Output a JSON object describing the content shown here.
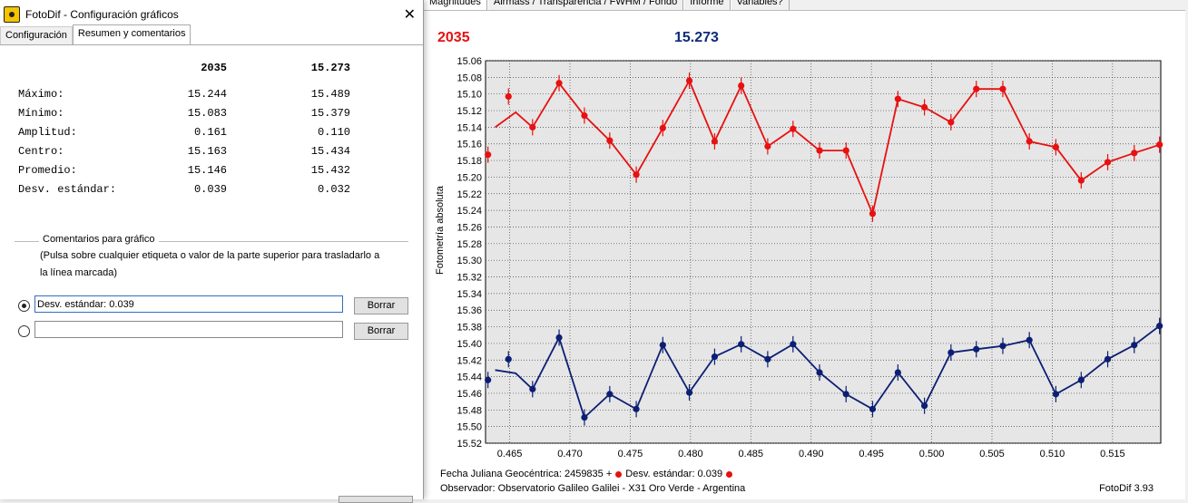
{
  "dialog": {
    "title": "FotoDif - Configuración gráficos",
    "close": "✕",
    "tabs": [
      "Configuración",
      "Resumen y comentarios"
    ],
    "stats": {
      "headers": [
        "2035",
        "15.273"
      ],
      "rows": [
        {
          "name": "Máximo:",
          "v1": "15.244",
          "v2": "15.489"
        },
        {
          "name": "Mínimo:",
          "v1": "15.083",
          "v2": "15.379"
        },
        {
          "name": "Amplitud:",
          "v1": "0.161",
          "v2": "0.110"
        },
        {
          "name": "Centro:",
          "v1": "15.163",
          "v2": "15.434"
        },
        {
          "name": "Promedio:",
          "v1": "15.146",
          "v2": "15.432"
        },
        {
          "name": "Desv. estándar:",
          "v1": "0.039",
          "v2": "0.032"
        }
      ]
    },
    "comments_title": "Comentarios para gráfico",
    "comments_help": "(Pulsa sobre cualquier etiqueta o valor de la parte superior para trasladarlo a la línea marcada)",
    "comment_line1": "Desv. estándar: 0.039",
    "comment_line2": "",
    "clear_label": "Borrar"
  },
  "main": {
    "tabs": [
      "Magnitudes",
      "Airmass / Transparencia / FWHM / Fondo",
      "Informe",
      "Variables?"
    ],
    "label_red": "2035",
    "label_blue": "15.273",
    "footer_line1_prefix": "Fecha Juliana Geocéntrica: 2459835 +",
    "footer_line1_stat": "Desv. estándar: 0.039",
    "footer_line2": "Observador: Observatorio Galileo Galilei - X31 Oro Verde - Argentina",
    "footer_version": "FotoDif 3.93"
  },
  "colors": {
    "red": "#e81010",
    "blue": "#0c1f73"
  },
  "chart_data": {
    "type": "line",
    "ylabel": "Fotometría absoluta",
    "xlabel": "",
    "xlim": [
      0.463,
      0.519
    ],
    "ylim": [
      15.06,
      15.52
    ],
    "y_inverted": true,
    "grid": true,
    "x_ticks": [
      "0.465",
      "0.470",
      "0.475",
      "0.480",
      "0.485",
      "0.490",
      "0.495",
      "0.500",
      "0.505",
      "0.510",
      "0.515"
    ],
    "y_ticks": [
      "15.06",
      "15.08",
      "15.10",
      "15.12",
      "15.14",
      "15.16",
      "15.18",
      "15.20",
      "15.22",
      "15.24",
      "15.26",
      "15.28",
      "15.30",
      "15.32",
      "15.34",
      "15.36",
      "15.38",
      "15.40",
      "15.42",
      "15.44",
      "15.46",
      "15.48",
      "15.50",
      "15.52"
    ],
    "series": [
      {
        "name": "2035",
        "color": "#e81010",
        "x": [
          0.4632,
          0.4649,
          0.4669,
          0.4691,
          0.4712,
          0.4733,
          0.4755,
          0.4777,
          0.4799,
          0.482,
          0.4842,
          0.4864,
          0.4885,
          0.4907,
          0.4929,
          0.4951,
          0.4972,
          0.4994,
          0.5016,
          0.5037,
          0.5059,
          0.5081,
          0.5103,
          0.5124,
          0.5146,
          0.5168,
          0.5189
        ],
        "y": [
          15.173,
          15.103,
          15.14,
          15.087,
          15.126,
          15.156,
          15.197,
          15.141,
          15.084,
          15.157,
          15.09,
          15.163,
          15.142,
          15.168,
          15.168,
          15.244,
          15.106,
          15.116,
          15.134,
          15.094,
          15.094,
          15.157,
          15.164,
          15.204,
          15.182,
          15.171,
          15.161
        ],
        "line_x": [
          0.4638,
          0.4655,
          0.4669,
          0.4691,
          0.4712,
          0.4733,
          0.4755,
          0.4777,
          0.4799,
          0.482,
          0.4842,
          0.4864,
          0.4885,
          0.4907,
          0.4929,
          0.4951,
          0.4972,
          0.4994,
          0.5016,
          0.5037,
          0.5059,
          0.5081,
          0.5103,
          0.5124,
          0.5146,
          0.5168,
          0.5189
        ],
        "line_y": [
          15.14,
          15.122,
          15.14,
          15.087,
          15.126,
          15.156,
          15.197,
          15.141,
          15.084,
          15.157,
          15.09,
          15.163,
          15.142,
          15.168,
          15.168,
          15.244,
          15.106,
          15.116,
          15.134,
          15.094,
          15.094,
          15.157,
          15.164,
          15.204,
          15.182,
          15.171,
          15.161
        ]
      },
      {
        "name": "15.273",
        "color": "#0c1f73",
        "x": [
          0.4632,
          0.4649,
          0.4669,
          0.4691,
          0.4712,
          0.4733,
          0.4755,
          0.4777,
          0.4799,
          0.482,
          0.4842,
          0.4864,
          0.4885,
          0.4907,
          0.4929,
          0.4951,
          0.4972,
          0.4994,
          0.5016,
          0.5037,
          0.5059,
          0.5081,
          0.5103,
          0.5124,
          0.5146,
          0.5168,
          0.5189
        ],
        "y": [
          15.444,
          15.419,
          15.455,
          15.393,
          15.489,
          15.461,
          15.479,
          15.402,
          15.459,
          15.416,
          15.401,
          15.419,
          15.401,
          15.435,
          15.461,
          15.479,
          15.435,
          15.475,
          15.411,
          15.407,
          15.403,
          15.396,
          15.461,
          15.444,
          15.419,
          15.402,
          15.379
        ],
        "line_x": [
          0.4638,
          0.4655,
          0.4669,
          0.4691,
          0.4712,
          0.4733,
          0.4755,
          0.4777,
          0.4799,
          0.482,
          0.4842,
          0.4864,
          0.4885,
          0.4907,
          0.4929,
          0.4951,
          0.4972,
          0.4994,
          0.5016,
          0.5037,
          0.5059,
          0.5081,
          0.5103,
          0.5124,
          0.5146,
          0.5168,
          0.5189
        ],
        "line_y": [
          15.432,
          15.436,
          15.455,
          15.393,
          15.489,
          15.461,
          15.479,
          15.402,
          15.459,
          15.416,
          15.401,
          15.419,
          15.401,
          15.435,
          15.461,
          15.479,
          15.435,
          15.475,
          15.411,
          15.407,
          15.403,
          15.396,
          15.461,
          15.444,
          15.419,
          15.402,
          15.379
        ]
      }
    ]
  }
}
